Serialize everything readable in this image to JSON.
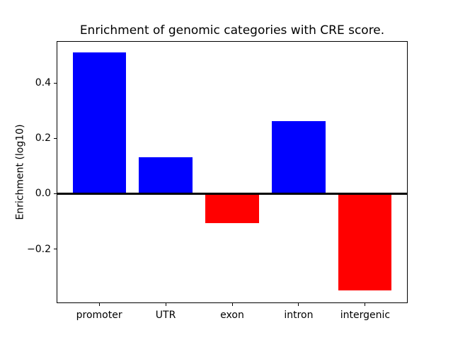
{
  "figure": {
    "background": "#ffffff",
    "text_color": "#000000",
    "spine_color": "#000000"
  },
  "chart_data": {
    "type": "bar",
    "title": "Enrichment of genomic categories with CRE score.",
    "xlabel": "",
    "ylabel": "Enrichment (log10)",
    "categories": [
      "promoter",
      "UTR",
      "exon",
      "intron",
      "intergenic"
    ],
    "values": [
      0.51,
      0.132,
      -0.106,
      0.262,
      -0.35
    ],
    "bar_colors": [
      "#0000ff",
      "#0000ff",
      "#ff0000",
      "#0000ff",
      "#ff0000"
    ],
    "positive_color": "#0000ff",
    "negative_color": "#ff0000",
    "yticks": [
      0.4,
      0.2,
      0.0,
      -0.2
    ],
    "ytick_labels": [
      "0.4",
      "0.2",
      "0.0",
      "−0.2"
    ],
    "ylim": [
      -0.396,
      0.552
    ],
    "grid": false,
    "legend": null,
    "zero_line": {
      "value": 0.0,
      "color": "#000000",
      "thickness_px": 3
    }
  }
}
